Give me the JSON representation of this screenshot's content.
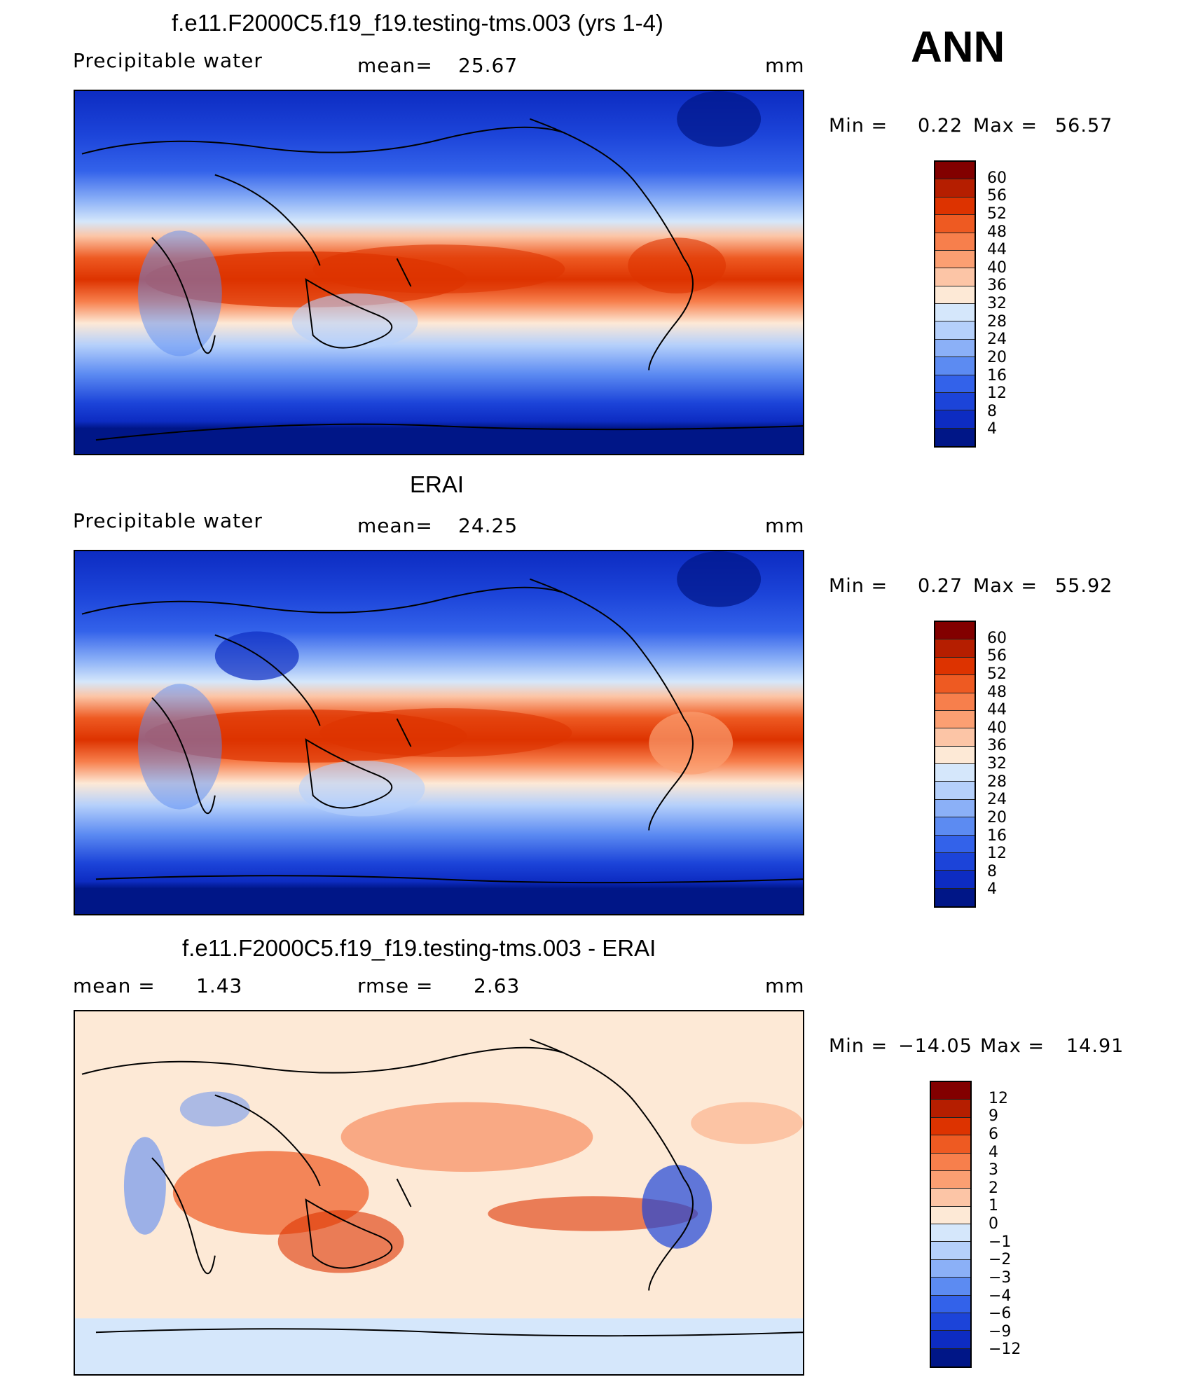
{
  "title": "ANN",
  "panels": [
    {
      "title": "f.e11.F2000C5.f19_f19.testing-tms.003 (yrs 1-4)",
      "left_label": "Precipitable  water",
      "center_label": "mean=",
      "center_value": "25.67",
      "units": "mm",
      "min_label": "Min  =",
      "min_value": "0.22",
      "max_label": "Max  =",
      "max_value": "56.57",
      "colorbar": {
        "levels": [
          "60",
          "56",
          "52",
          "48",
          "44",
          "40",
          "36",
          "32",
          "28",
          "24",
          "20",
          "16",
          "12",
          "8",
          "4"
        ],
        "colors": [
          "#820000",
          "#b51e00",
          "#dd3300",
          "#ee5a22",
          "#f77f4c",
          "#fb9f72",
          "#fcc5a6",
          "#fde9d6",
          "#d5e7fb",
          "#b5d0fb",
          "#8bb0f7",
          "#5c8bf2",
          "#3362ea",
          "#1c44d9",
          "#0d2cc2",
          "#001687"
        ]
      }
    },
    {
      "title": "ERAI",
      "left_label": "Precipitable  water",
      "center_label": "mean=",
      "center_value": "24.25",
      "units": "mm",
      "min_label": "Min  =",
      "min_value": "0.27",
      "max_label": "Max  =",
      "max_value": "55.92",
      "colorbar": {
        "levels": [
          "60",
          "56",
          "52",
          "48",
          "44",
          "40",
          "36",
          "32",
          "28",
          "24",
          "20",
          "16",
          "12",
          "8",
          "4"
        ],
        "colors": [
          "#820000",
          "#b51e00",
          "#dd3300",
          "#ee5a22",
          "#f77f4c",
          "#fb9f72",
          "#fcc5a6",
          "#fde9d6",
          "#d5e7fb",
          "#b5d0fb",
          "#8bb0f7",
          "#5c8bf2",
          "#3362ea",
          "#1c44d9",
          "#0d2cc2",
          "#001687"
        ]
      }
    },
    {
      "title": "f.e11.F2000C5.f19_f19.testing-tms.003 - ERAI",
      "left_label": "mean  =",
      "left_value": "1.43",
      "center_label": "rmse  =",
      "center_value": "2.63",
      "units": "mm",
      "min_label": "Min  =",
      "min_value": "−14.05",
      "max_label": "Max  =",
      "max_value": "14.91",
      "colorbar": {
        "levels": [
          "12",
          "9",
          "6",
          "4",
          "3",
          "2",
          "1",
          "0",
          "−1",
          "−2",
          "−3",
          "−4",
          "−6",
          "−9",
          "−12"
        ],
        "colors": [
          "#820000",
          "#b51e00",
          "#dd3300",
          "#ee5a22",
          "#f77f4c",
          "#fb9f72",
          "#fcc5a6",
          "#fde9d6",
          "#d5e7fb",
          "#b5d0fb",
          "#8bb0f7",
          "#5c8bf2",
          "#3362ea",
          "#1c44d9",
          "#0d2cc2",
          "#001687"
        ]
      }
    }
  ]
}
